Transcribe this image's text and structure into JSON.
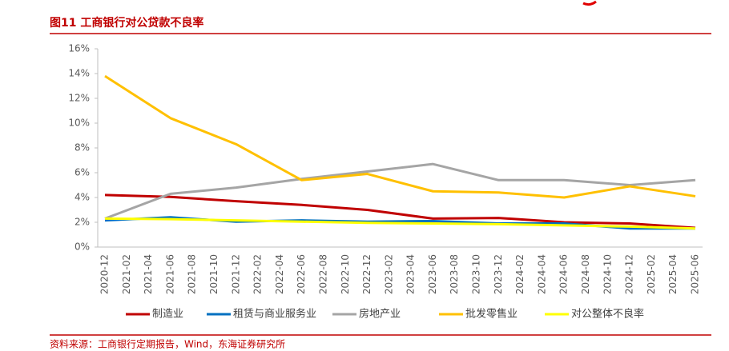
{
  "chart_data": {
    "type": "line",
    "title": "图11 工商银行对公贷款不良率",
    "source": "资料来源：工商银行定期报告，Wind，东海证券研究所",
    "x": [
      "2020-12",
      "2021-06",
      "2021-12",
      "2022-06",
      "2022-12",
      "2023-06",
      "2023-12",
      "2024-06",
      "2024-12",
      "2025-06"
    ],
    "xticks": [
      "2020-12",
      "2021-02",
      "2021-04",
      "2021-06",
      "2021-08",
      "2021-10",
      "2021-12",
      "2022-02",
      "2022-04",
      "2022-06",
      "2022-08",
      "2022-10",
      "2022-12",
      "2023-02",
      "2023-04",
      "2023-06",
      "2023-08",
      "2023-10",
      "2023-12",
      "2024-02",
      "2024-04",
      "2024-06",
      "2024-08",
      "2024-10",
      "2024-12",
      "2025-02",
      "2025-04",
      "2025-06"
    ],
    "ylim": [
      0,
      16
    ],
    "yticks": [
      {
        "value": 0,
        "label": "0%"
      },
      {
        "value": 2,
        "label": "2%"
      },
      {
        "value": 4,
        "label": "4%"
      },
      {
        "value": 6,
        "label": "6%"
      },
      {
        "value": 8,
        "label": "8%"
      },
      {
        "value": 10,
        "label": "10%"
      },
      {
        "value": 12,
        "label": "12%"
      },
      {
        "value": 14,
        "label": "14%"
      },
      {
        "value": 16,
        "label": "16%"
      }
    ],
    "series": [
      {
        "name": "制造业",
        "color": "#c00000",
        "values": [
          4.2,
          4.05,
          3.7,
          3.4,
          3.0,
          2.3,
          2.35,
          2.0,
          1.9,
          1.55
        ]
      },
      {
        "name": "租赁与商业服务业",
        "color": "#0070c0",
        "values": [
          2.15,
          2.4,
          2.05,
          2.15,
          2.05,
          2.1,
          1.9,
          1.9,
          1.5,
          1.5
        ]
      },
      {
        "name": "房地产业",
        "color": "#a5a5a5",
        "values": [
          2.3,
          4.3,
          4.8,
          5.5,
          6.1,
          6.7,
          5.4,
          5.4,
          5.0,
          5.4
        ]
      },
      {
        "name": "批发零售业",
        "color": "#ffc000",
        "values": [
          13.8,
          10.4,
          8.3,
          5.4,
          5.9,
          4.5,
          4.4,
          4.0,
          4.9,
          4.1
        ]
      },
      {
        "name": "对公整体不良率",
        "color": "#ffff00",
        "values": [
          2.3,
          2.25,
          2.15,
          2.05,
          1.95,
          1.9,
          1.85,
          1.75,
          1.65,
          1.5
        ]
      }
    ]
  }
}
